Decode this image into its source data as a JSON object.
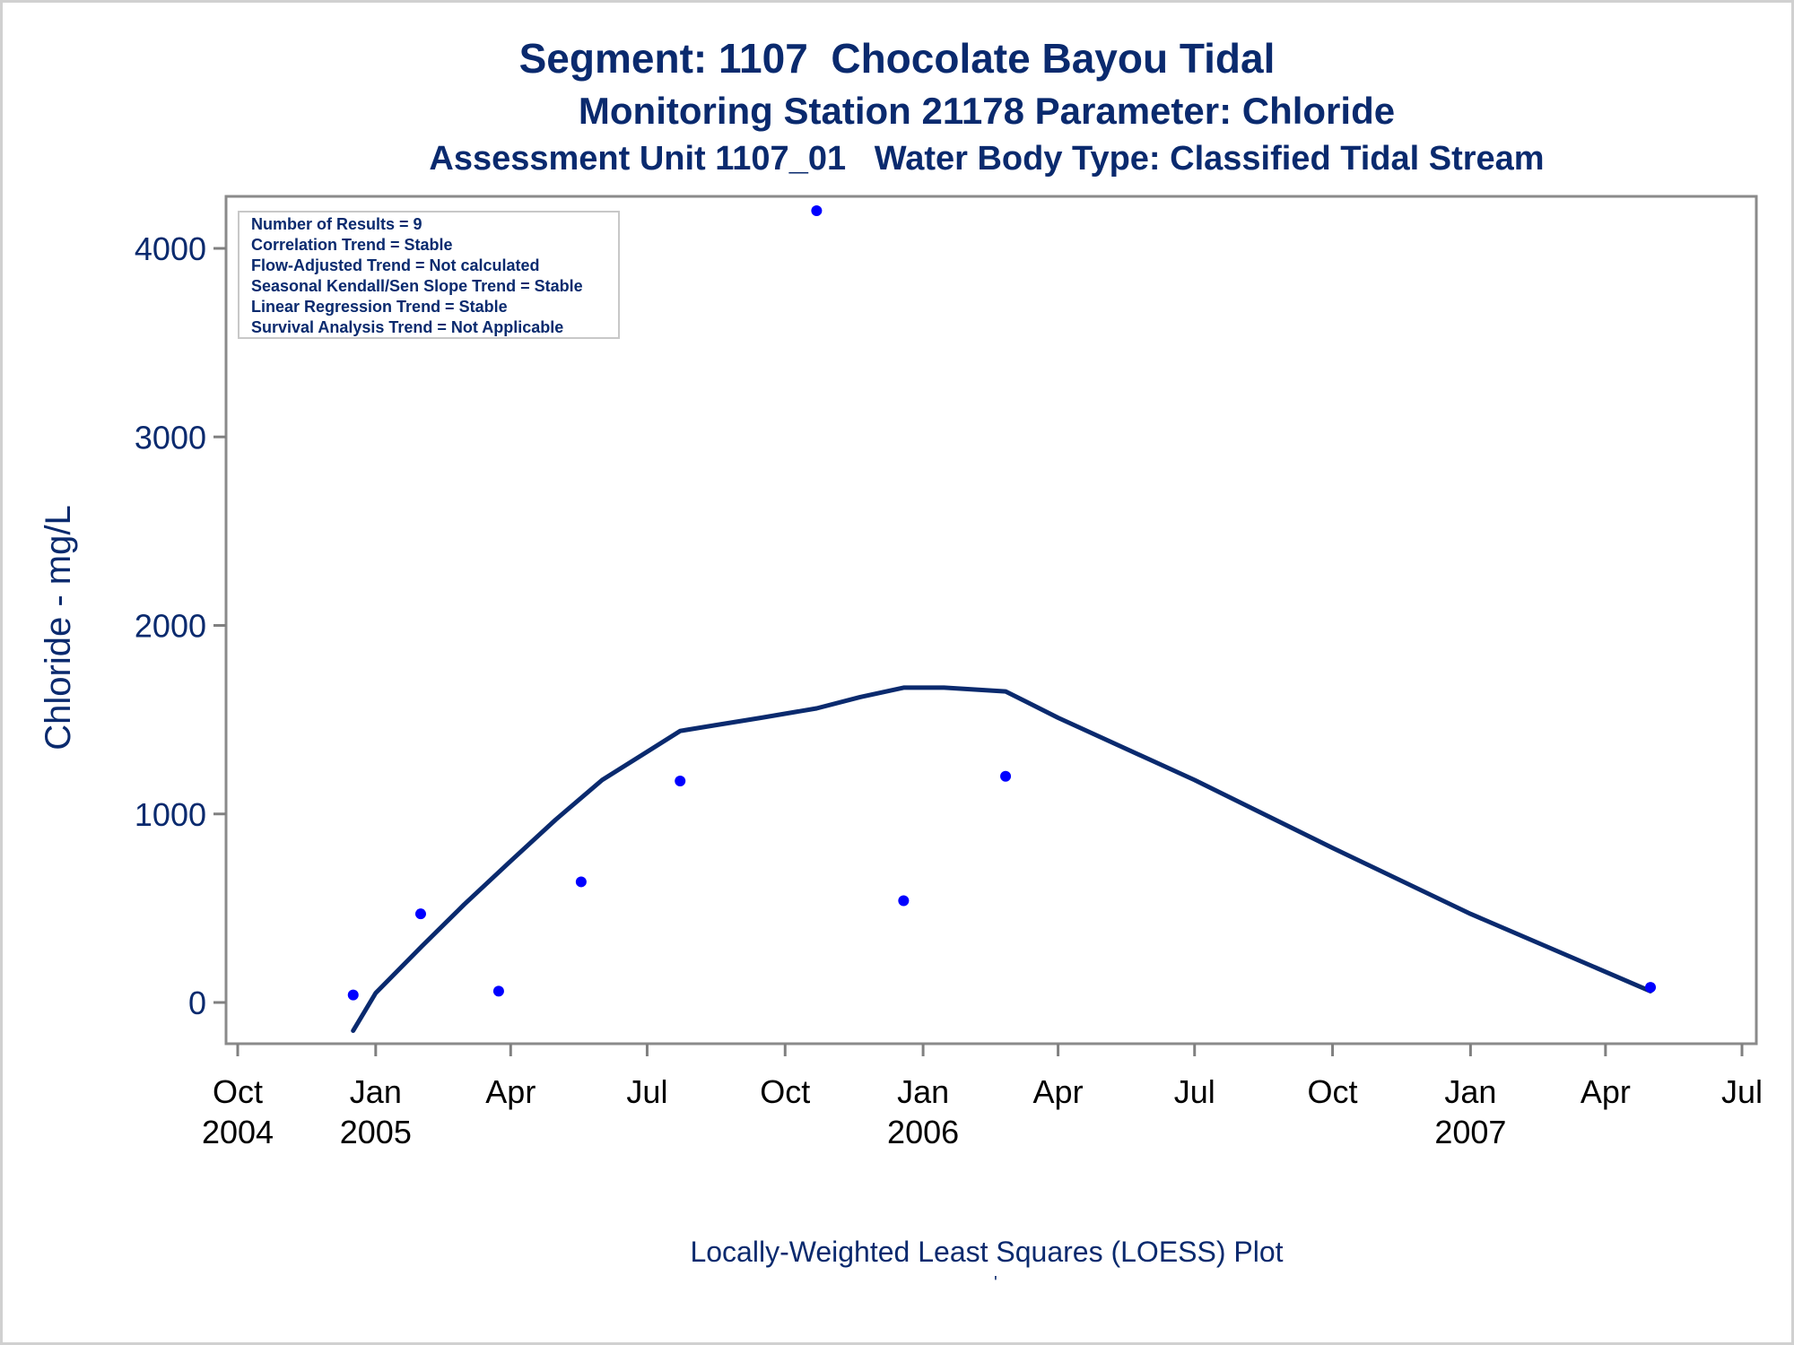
{
  "titles": {
    "line1": "Segment: 1107  Chocolate Bayou Tidal",
    "line2": "Monitoring Station 21178 Parameter: Chloride",
    "line3": "Assessment Unit 1107_01   Water Body Type: Classified Tidal Stream"
  },
  "stats_box": [
    "Number of Results = 9",
    "Correlation Trend = Stable",
    "Flow-Adjusted Trend = Not calculated",
    "Seasonal Kendall/Sen Slope Trend = Stable",
    "Linear Regression Trend = Stable",
    "Survival Analysis Trend = Not Applicable"
  ],
  "footnote": "Locally-Weighted Least Squares (LOESS) Plot",
  "footnote_mark": "'",
  "colors": {
    "text": "#0a2a6e",
    "points": "#0000ff",
    "line": "#0a2a6e",
    "axis": "#808080"
  },
  "chart_data": {
    "type": "scatter",
    "title": "Segment: 1107  Chocolate Bayou Tidal",
    "subtitle": "Monitoring Station 21178 Parameter: Chloride",
    "xlabel": "",
    "ylabel": "Chloride - mg/L",
    "x_axis_type": "date",
    "xlim": [
      "2004-10-01",
      "2007-07-01"
    ],
    "ylim": [
      -200,
      4300
    ],
    "grid": false,
    "y_ticks": [
      0,
      1000,
      2000,
      3000,
      4000
    ],
    "x_ticks": [
      {
        "date": "2004-10-01",
        "label": [
          "Oct",
          "2004"
        ]
      },
      {
        "date": "2005-01-01",
        "label": [
          "Jan",
          "2005"
        ]
      },
      {
        "date": "2005-04-01",
        "label": [
          "Apr",
          ""
        ]
      },
      {
        "date": "2005-07-01",
        "label": [
          "Jul",
          ""
        ]
      },
      {
        "date": "2005-10-01",
        "label": [
          "Oct",
          ""
        ]
      },
      {
        "date": "2006-01-01",
        "label": [
          "Jan",
          "2006"
        ]
      },
      {
        "date": "2006-04-01",
        "label": [
          "Apr",
          ""
        ]
      },
      {
        "date": "2006-07-01",
        "label": [
          "Jul",
          ""
        ]
      },
      {
        "date": "2006-10-01",
        "label": [
          "Oct",
          ""
        ]
      },
      {
        "date": "2007-01-01",
        "label": [
          "Jan",
          "2007"
        ]
      },
      {
        "date": "2007-04-01",
        "label": [
          "Apr",
          ""
        ]
      },
      {
        "date": "2007-07-01",
        "label": [
          "Jul",
          ""
        ]
      }
    ],
    "points": [
      {
        "x": "2004-12-17",
        "y": 40
      },
      {
        "x": "2005-01-31",
        "y": 470
      },
      {
        "x": "2005-03-24",
        "y": 60
      },
      {
        "x": "2005-05-18",
        "y": 640
      },
      {
        "x": "2005-07-23",
        "y": 1175
      },
      {
        "x": "2005-10-22",
        "y": 4200
      },
      {
        "x": "2005-12-19",
        "y": 540
      },
      {
        "x": "2006-02-25",
        "y": 1200
      },
      {
        "x": "2007-05-01",
        "y": 80
      }
    ],
    "loess_line": [
      {
        "x": "2004-12-17",
        "y": -150
      },
      {
        "x": "2005-01-01",
        "y": 50
      },
      {
        "x": "2005-02-01",
        "y": 300
      },
      {
        "x": "2005-03-01",
        "y": 520
      },
      {
        "x": "2005-04-01",
        "y": 750
      },
      {
        "x": "2005-05-01",
        "y": 970
      },
      {
        "x": "2005-06-01",
        "y": 1180
      },
      {
        "x": "2005-07-01",
        "y": 1330
      },
      {
        "x": "2005-07-23",
        "y": 1440
      },
      {
        "x": "2005-08-15",
        "y": 1470
      },
      {
        "x": "2005-09-15",
        "y": 1510
      },
      {
        "x": "2005-10-22",
        "y": 1560
      },
      {
        "x": "2005-11-20",
        "y": 1620
      },
      {
        "x": "2005-12-19",
        "y": 1670
      },
      {
        "x": "2006-01-15",
        "y": 1670
      },
      {
        "x": "2006-02-25",
        "y": 1650
      },
      {
        "x": "2006-04-01",
        "y": 1510
      },
      {
        "x": "2006-07-01",
        "y": 1180
      },
      {
        "x": "2006-10-01",
        "y": 820
      },
      {
        "x": "2007-01-01",
        "y": 470
      },
      {
        "x": "2007-05-01",
        "y": 60
      }
    ]
  }
}
